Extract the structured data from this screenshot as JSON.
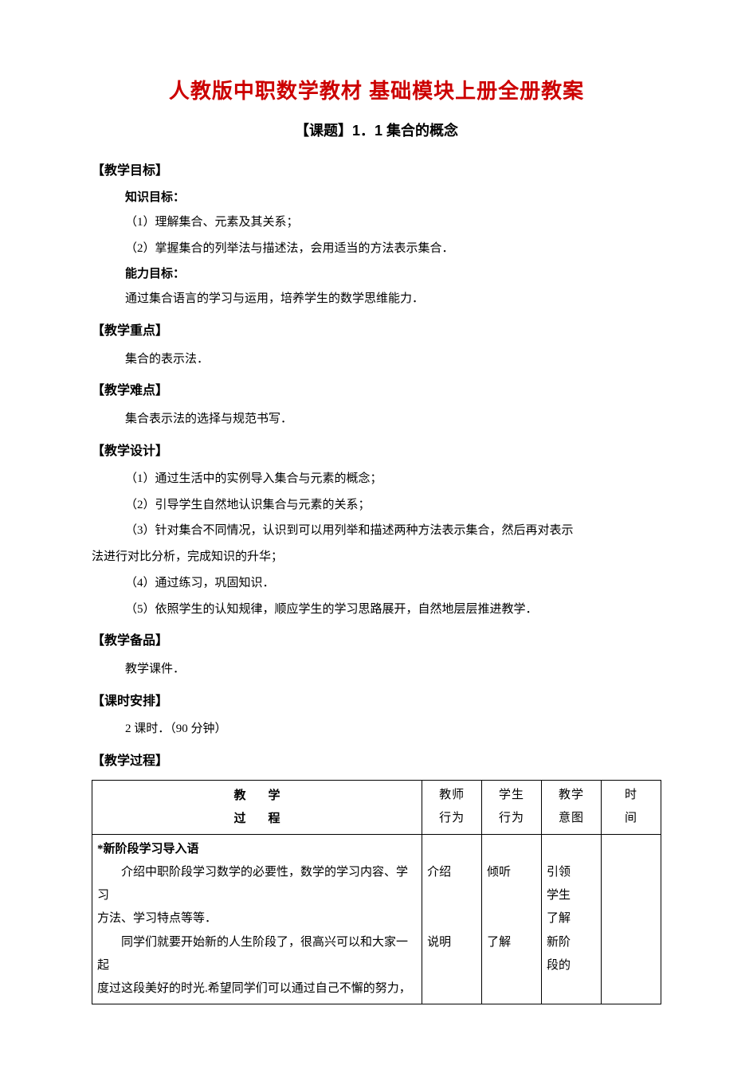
{
  "title": "人教版中职数学教材 基础模块上册全册教案",
  "subtitle": "【课题】1．1 集合的概念",
  "colors": {
    "title_red": "#cc0000",
    "text": "#000000",
    "border": "#000000",
    "background": "#ffffff"
  },
  "fontsizes": {
    "title": 26,
    "subtitle": 18,
    "section": 16,
    "body": 15
  },
  "sections": {
    "goal": {
      "header": "【教学目标】",
      "knowledge_header": "知识目标：",
      "k1": "（1）理解集合、元素及其关系；",
      "k2": "（2）掌握集合的列举法与描述法，会用适当的方法表示集合．",
      "ability_header": "能力目标：",
      "a1": "通过集合语言的学习与运用，培养学生的数学思维能力．"
    },
    "focus": {
      "header": "【教学重点】",
      "text": "集合的表示法．"
    },
    "difficulty": {
      "header": "【教学难点】",
      "text": "集合表示法的选择与规范书写．"
    },
    "design": {
      "header": "【教学设计】",
      "d1": "（1）通过生活中的实例导入集合与元素的概念；",
      "d2": "（2）引导学生自然地认识集合与元素的关系；",
      "d3a": "（3）针对集合不同情况，认识到可以用列举和描述两种方法表示集合，然后再对表示",
      "d3b": "法进行对比分析，完成知识的升华；",
      "d4": "（4）通过练习，巩固知识．",
      "d5": "（5）依照学生的认知规律，顺应学生的学习思路展开，自然地层层推进教学．"
    },
    "prep": {
      "header": "【教学备品】",
      "text": "教学课件．"
    },
    "schedule": {
      "header": "【课时安排】",
      "text": "2 课时．（90 分钟）"
    },
    "process": {
      "header": "【教学过程】"
    }
  },
  "table": {
    "headers": {
      "main1": "教学",
      "main2": "过程",
      "teacher": "教师",
      "teacher2": "行为",
      "student": "学生",
      "student2": "行为",
      "intent": "教学",
      "intent2": "意图",
      "time": "时",
      "time2": "间"
    },
    "row": {
      "proc_title": "*新阶段学习导入语",
      "proc_l1": "介绍中职阶段学习数学的必要性，数学的学习内容、学习",
      "proc_l2": "方法、学习特点等等．",
      "proc_l3": "同学们就要开始新的人生阶段了，很高兴可以和大家一起",
      "proc_l4": "度过这段美好的时光.希望同学们可以通过自己不懈的努力，",
      "teacher_l1": "介绍",
      "teacher_l2": "说明",
      "student_l1": "倾听",
      "student_l2": "了解",
      "intent_l1": "引领",
      "intent_l2": "学生",
      "intent_l3": "了解",
      "intent_l4": "新阶",
      "intent_l5": "段的"
    }
  }
}
